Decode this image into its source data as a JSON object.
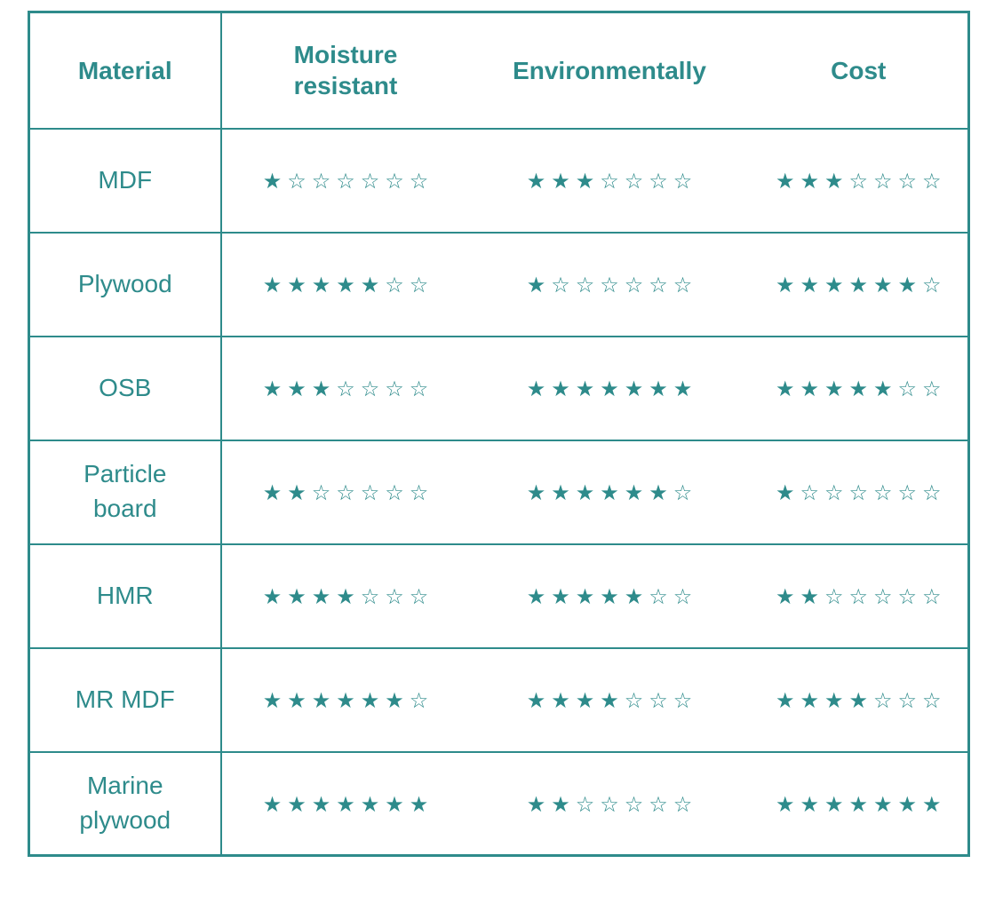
{
  "theme": {
    "accent": "#2e8b8b",
    "background": "#ffffff",
    "star_filled_color": "#2e8b8b",
    "star_empty_color": "#2e8b8b"
  },
  "icons": {
    "star_filled": "★",
    "star_empty": "☆"
  },
  "chart_data": {
    "type": "table",
    "title": "",
    "columns": [
      "Material",
      "Moisture resistant",
      "Environmentally",
      "Cost"
    ],
    "rating_scale": {
      "min": 0,
      "max": 7
    },
    "rows": [
      {
        "material": "MDF",
        "moisture_resistant": 1,
        "environmentally": 3,
        "cost": 3
      },
      {
        "material": "Plywood",
        "moisture_resistant": 5,
        "environmentally": 1,
        "cost": 6
      },
      {
        "material": "OSB",
        "moisture_resistant": 3,
        "environmentally": 7,
        "cost": 5
      },
      {
        "material": "Particle board",
        "moisture_resistant": 2,
        "environmentally": 6,
        "cost": 1
      },
      {
        "material": "HMR",
        "moisture_resistant": 4,
        "environmentally": 5,
        "cost": 2
      },
      {
        "material": "MR MDF",
        "moisture_resistant": 6,
        "environmentally": 4,
        "cost": 4
      },
      {
        "material": "Marine plywood",
        "moisture_resistant": 7,
        "environmentally": 2,
        "cost": 7
      }
    ]
  }
}
